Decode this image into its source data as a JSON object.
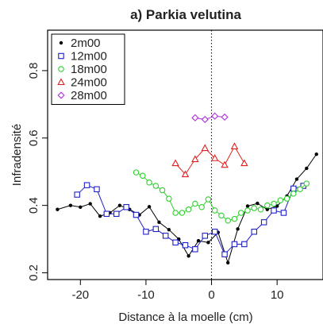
{
  "chart_data": {
    "type": "line",
    "title": "a) Parkia velutina",
    "xlabel": "Distance à la moelle (cm)",
    "ylabel": "Infradensité",
    "xlim": [
      -25,
      17
    ],
    "ylim": [
      0.18,
      0.92
    ],
    "xticks": [
      -20,
      -10,
      0,
      10
    ],
    "yticks": [
      0.2,
      0.4,
      0.6,
      0.8
    ],
    "xtick_labels": [
      "-20",
      "-10",
      "0",
      "10"
    ],
    "ytick_labels": [
      "0.2",
      "0.4",
      "0.6",
      "0.8"
    ],
    "legend_position": "top-left",
    "vertical_reference_line_x": 0,
    "series": [
      {
        "name": "2m00",
        "color": "#000000",
        "marker": "dot",
        "x": [
          -23.5,
          -21.5,
          -20.0,
          -18.5,
          -17.0,
          -15.5,
          -14.0,
          -12.5,
          -11.0,
          -9.5,
          -8.0,
          -6.5,
          -5.0,
          -3.5,
          -2.0,
          -0.5,
          1.0,
          2.5,
          4.0,
          5.5,
          7.0,
          8.5,
          10.0,
          11.5,
          13.0,
          14.5,
          16.0
        ],
        "y": [
          0.388,
          0.4,
          0.395,
          0.405,
          0.368,
          0.378,
          0.4,
          0.388,
          0.372,
          0.396,
          0.35,
          0.328,
          0.3,
          0.25,
          0.295,
          0.29,
          0.32,
          0.23,
          0.33,
          0.398,
          0.406,
          0.388,
          0.398,
          0.428,
          0.478,
          0.51,
          0.552
        ]
      },
      {
        "name": "12m00",
        "color": "#2020c8",
        "marker": "square",
        "x": [
          -20.5,
          -19.0,
          -17.5,
          -16.0,
          -14.5,
          -13.0,
          -11.5,
          -10.0,
          -8.5,
          -7.0,
          -5.5,
          -4.0,
          -2.5,
          -1.0,
          0.5,
          2.0,
          3.5,
          5.0,
          6.5,
          8.0,
          9.5,
          11.0,
          12.5,
          14.0
        ],
        "y": [
          0.432,
          0.46,
          0.448,
          0.375,
          0.375,
          0.395,
          0.372,
          0.322,
          0.33,
          0.31,
          0.29,
          0.282,
          0.27,
          0.31,
          0.322,
          0.255,
          0.285,
          0.285,
          0.322,
          0.35,
          0.385,
          0.378,
          0.45,
          0.458
        ]
      },
      {
        "name": "18m00",
        "color": "#30d030",
        "marker": "circle",
        "x": [
          -11.5,
          -10.5,
          -9.5,
          -8.5,
          -7.5,
          -6.5,
          -5.5,
          -4.5,
          -3.5,
          -2.5,
          -1.5,
          -0.5,
          0.5,
          1.5,
          2.5,
          3.5,
          4.5,
          5.5,
          6.5,
          7.5,
          8.5,
          9.5,
          10.5,
          11.5,
          12.5,
          13.5,
          14.5
        ],
        "y": [
          0.498,
          0.488,
          0.468,
          0.458,
          0.445,
          0.42,
          0.378,
          0.378,
          0.388,
          0.405,
          0.395,
          0.418,
          0.385,
          0.37,
          0.355,
          0.36,
          0.378,
          0.385,
          0.392,
          0.388,
          0.4,
          0.405,
          0.415,
          0.42,
          0.435,
          0.448,
          0.465
        ]
      },
      {
        "name": "24m00",
        "color": "#e02020",
        "marker": "triangle",
        "x": [
          -5.5,
          -4.0,
          -2.5,
          -1.0,
          0.5,
          2.0,
          3.5,
          5.0
        ],
        "y": [
          0.525,
          0.492,
          0.537,
          0.57,
          0.54,
          0.52,
          0.575,
          0.525
        ]
      },
      {
        "name": "28m00",
        "color": "#b030e0",
        "marker": "diamond",
        "x": [
          -2.5,
          -1.0,
          0.5,
          2.0
        ],
        "y": [
          0.66,
          0.655,
          0.665,
          0.662
        ]
      }
    ]
  }
}
